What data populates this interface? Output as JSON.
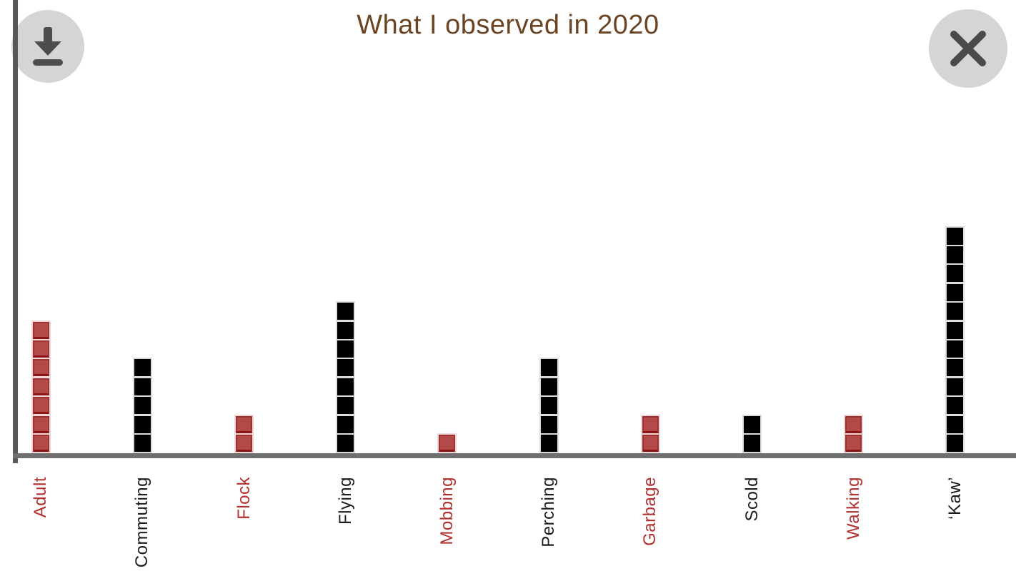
{
  "header": {
    "title": "What I observed in 2020",
    "icons": {
      "download": "download-arrow-with-tray",
      "close": "x-cross"
    }
  },
  "chart_data": {
    "type": "bar",
    "style": "pictograph-unit-squares",
    "title": "What I observed in 2020",
    "categories": [
      "Adult",
      "Commuting",
      "Flock",
      "Flying",
      "Mobbing",
      "Perching",
      "Garbage",
      "Scold",
      "Walking",
      "‘Kaw’"
    ],
    "values": [
      7,
      5,
      2,
      8,
      1,
      5,
      2,
      2,
      2,
      12
    ],
    "series_colors": [
      "red",
      "black",
      "red",
      "black",
      "red",
      "black",
      "red",
      "black",
      "red",
      "black"
    ],
    "unit_value": 1,
    "xlabel": "",
    "ylabel": "",
    "ylim": [
      0,
      12
    ],
    "grid": false,
    "legend": false,
    "label_rotation_degrees": 90
  },
  "colors": {
    "red_square_fill": "#b34a4a",
    "red_square_edge": "#8d1515",
    "black_square_fill": "#000000",
    "label_red": "#b13030",
    "label_black": "#1c1c1c",
    "title_brown": "#6b4423",
    "axis_gray": "#6f6f6f",
    "button_background": "#d5d5d5",
    "button_icon": "#4d4d4d"
  }
}
